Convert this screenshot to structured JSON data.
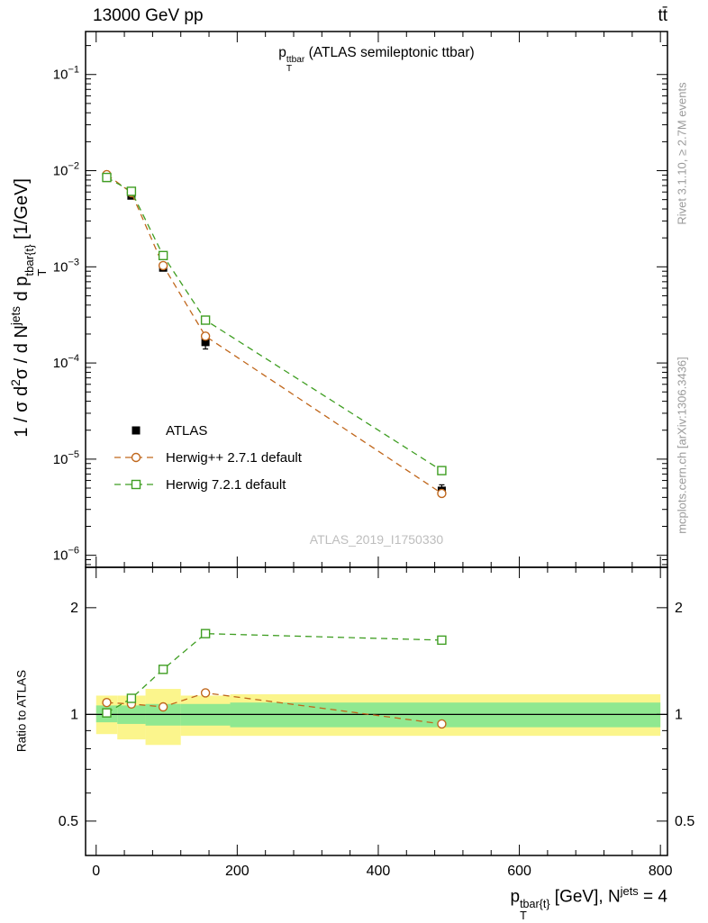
{
  "header": {
    "beam": "13000 GeV pp",
    "process": "tt̄"
  },
  "title": {
    "base": "p",
    "sup": "ttbar",
    "sub": "T",
    "rest": " (ATLAS semileptonic ttbar)"
  },
  "watermark": "ATLAS_2019_I1750330",
  "side_notes": {
    "rivet": "Rivet 3.1.10, ≥ 2.7M events",
    "mcplots": "mcplots.cern.ch [arXiv:1306.3436]"
  },
  "axis_labels": {
    "main_y": {
      "s1": "1 / σ d",
      "sup1": "2",
      "s2": "σ / d N",
      "sup2": "jets",
      "s3": " d p",
      "sup3": "tbar{t}",
      "sub3": "T",
      "s4": " [1/GeV]"
    },
    "ratio_y": "Ratio to ATLAS",
    "x": {
      "s1": "p",
      "sup1": "tbar{t}",
      "sub1": "T",
      "s2": " [GeV], N",
      "sup2": "jets",
      "s3": " = 4"
    }
  },
  "legend": [
    {
      "label": "ATLAS",
      "marker": "filled-square",
      "color": "#000000",
      "line": "none"
    },
    {
      "label": "Herwig++ 2.7.1 default",
      "marker": "open-circle",
      "color": "#c0671c",
      "line": "dashed"
    },
    {
      "label": "Herwig 7.2.1 default",
      "marker": "open-square",
      "color": "#3f9e22",
      "line": "dashed"
    }
  ],
  "chart_data": {
    "type": "scatter",
    "x_gev": [
      15,
      50,
      95,
      155,
      490
    ],
    "series": [
      {
        "name": "ATLAS",
        "marker": "filled-square",
        "color": "#000000",
        "line": "none",
        "values": [
          0.0084,
          0.0055,
          0.00098,
          0.000165,
          4.7e-06
        ],
        "yerr_factor": [
          1.04,
          1.04,
          1.08,
          1.18,
          1.15
        ]
      },
      {
        "name": "Herwig++ 2.7.1 default",
        "marker": "open-circle",
        "color": "#c0671c",
        "line": "dashed",
        "values": [
          0.0091,
          0.0059,
          0.00103,
          0.00019,
          4.4e-06
        ]
      },
      {
        "name": "Herwig 7.2.1 default",
        "marker": "open-square",
        "color": "#3f9e22",
        "line": "dashed",
        "values": [
          0.0085,
          0.0061,
          0.00131,
          0.000279,
          7.6e-06
        ]
      }
    ],
    "ratio_series": [
      {
        "name": "Herwig++ 2.7.1 default",
        "marker": "open-circle",
        "color": "#c0671c",
        "line": "dashed",
        "values": [
          1.08,
          1.07,
          1.05,
          1.15,
          0.94
        ]
      },
      {
        "name": "Herwig 7.2.1 default",
        "marker": "open-square",
        "color": "#3f9e22",
        "line": "dashed",
        "values": [
          1.01,
          1.11,
          1.34,
          1.69,
          1.62
        ]
      }
    ],
    "bands": {
      "bin_edges": [
        0,
        30,
        70,
        120,
        190,
        800
      ],
      "yellow": [
        [
          0.88,
          1.13
        ],
        [
          0.85,
          1.13
        ],
        [
          0.82,
          1.18
        ],
        [
          0.87,
          1.13
        ],
        [
          0.87,
          1.14
        ]
      ],
      "green": [
        [
          0.95,
          1.06
        ],
        [
          0.94,
          1.06
        ],
        [
          0.93,
          1.07
        ],
        [
          0.93,
          1.07
        ],
        [
          0.92,
          1.08
        ]
      ],
      "yellow_color": "#fbf58c",
      "green_color": "#90e890"
    },
    "reference_line": 1,
    "axes": {
      "x": {
        "min": -15,
        "max": 810,
        "major_ticks": [
          0,
          200,
          400,
          600,
          800
        ],
        "minor_step": 40
      },
      "main_y": {
        "scale": "log",
        "top": 0.28,
        "bottom": 7.5e-07,
        "decade_labels": [
          -1,
          -2,
          -3,
          -4,
          -5,
          -6
        ]
      },
      "ratio_y": {
        "scale": "log",
        "min": 0.4,
        "max": 2.6,
        "labeled": [
          0.5,
          1,
          2
        ],
        "minor": [
          0.6,
          0.7,
          0.8,
          0.9
        ]
      }
    }
  }
}
